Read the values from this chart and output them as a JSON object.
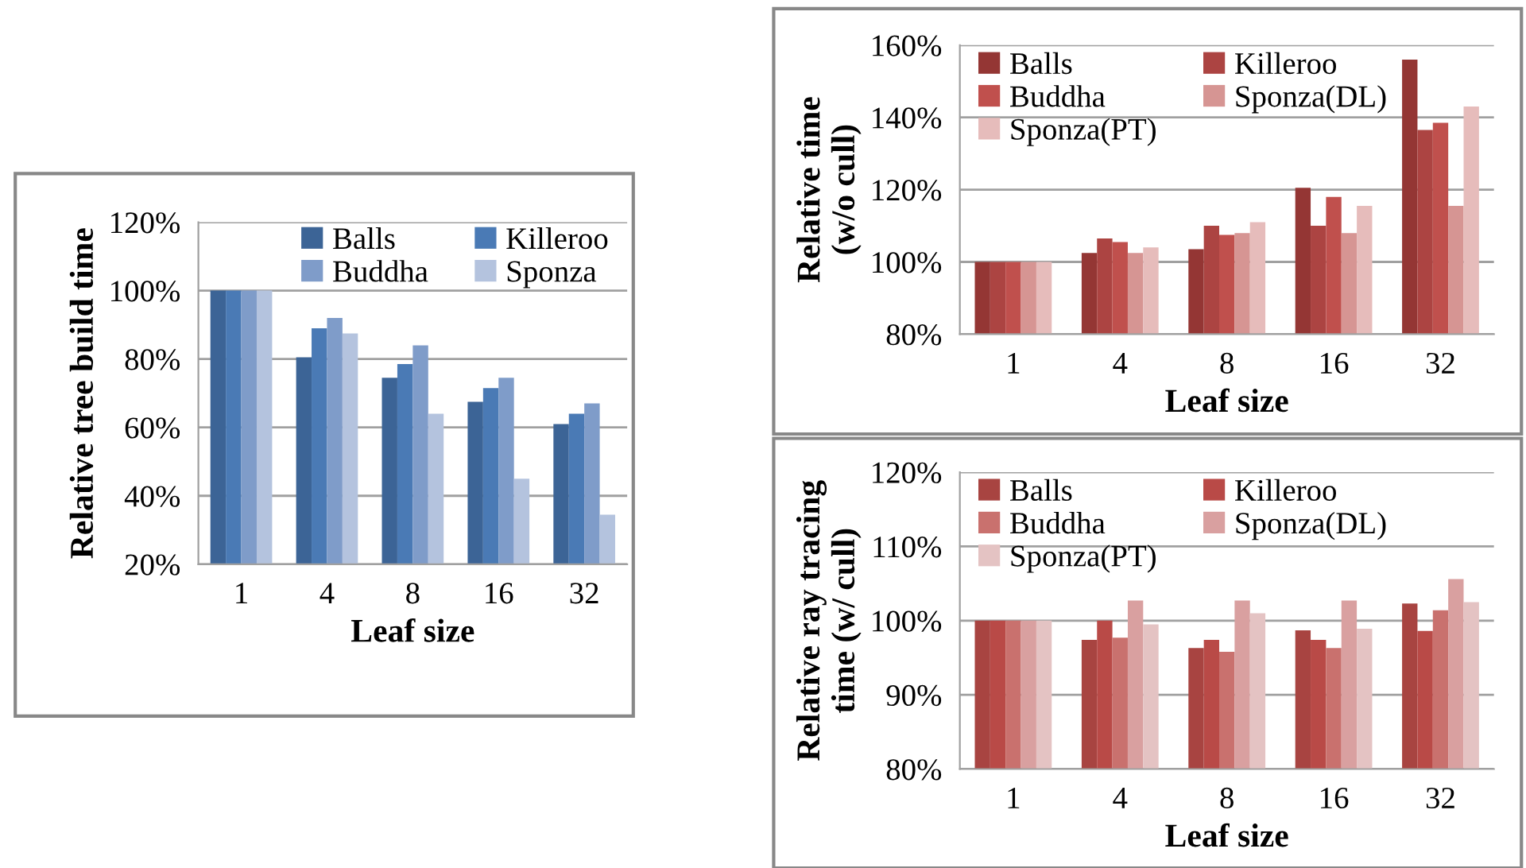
{
  "chart_data": [
    {
      "type": "bar",
      "xlabel": "Leaf size",
      "ylabel": "Relative tree build time",
      "categories": [
        "1",
        "4",
        "8",
        "16",
        "32"
      ],
      "series": [
        {
          "name": "Balls",
          "color": "#3c6496",
          "values": [
            100,
            80.5,
            74.5,
            67.5,
            61
          ]
        },
        {
          "name": "Killeroo",
          "color": "#4a7ab5",
          "values": [
            100,
            89,
            78.5,
            71.5,
            64
          ]
        },
        {
          "name": "Buddha",
          "color": "#7f9cc9",
          "values": [
            100,
            92,
            84,
            74.5,
            67
          ]
        },
        {
          "name": "Sponza",
          "color": "#b4c3de",
          "values": [
            100,
            87.5,
            64,
            45,
            34.5
          ]
        }
      ],
      "ylim": [
        20,
        120
      ],
      "yticks": [
        {
          "value": 20,
          "label": "20%"
        },
        {
          "value": 40,
          "label": "40%"
        },
        {
          "value": 60,
          "label": "60%"
        },
        {
          "value": 80,
          "label": "80%"
        },
        {
          "value": 100,
          "label": "100%"
        },
        {
          "value": 120,
          "label": "120%"
        }
      ],
      "grid": "y",
      "legend": "top right"
    },
    {
      "type": "bar",
      "xlabel": "Leaf size",
      "ylabel": "Relative time\n(w/o cull)",
      "categories": [
        "1",
        "4",
        "8",
        "16",
        "32"
      ],
      "series": [
        {
          "name": "Balls",
          "color": "#943634",
          "values": [
            100,
            102.5,
            103.5,
            120.5,
            156
          ]
        },
        {
          "name": "Killeroo",
          "color": "#ac4442",
          "values": [
            100,
            106.5,
            110,
            110,
            136.5
          ]
        },
        {
          "name": "Buddha",
          "color": "#c0504d",
          "values": [
            100,
            105.5,
            107.5,
            118,
            138.5
          ]
        },
        {
          "name": "Sponza(DL)",
          "color": "#d69593",
          "values": [
            100,
            102.5,
            108,
            108,
            115.5
          ]
        },
        {
          "name": "Sponza(PT)",
          "color": "#e6bcbb",
          "values": [
            100,
            104,
            111,
            115.5,
            143
          ]
        }
      ],
      "ylim": [
        80,
        160
      ],
      "yticks": [
        {
          "value": 80,
          "label": "80%"
        },
        {
          "value": 100,
          "label": "100%"
        },
        {
          "value": 120,
          "label": "120%"
        },
        {
          "value": 140,
          "label": "140%"
        },
        {
          "value": 160,
          "label": "160%"
        }
      ],
      "grid": "y",
      "legend": "top left"
    },
    {
      "type": "bar",
      "xlabel": "Leaf size",
      "ylabel": "Relative ray tracing\ntime (w/ cull)",
      "categories": [
        "1",
        "4",
        "8",
        "16",
        "32"
      ],
      "series": [
        {
          "name": "Balls",
          "color": "#a84441",
          "values": [
            100,
            97.4,
            96.3,
            98.7,
            102.3
          ]
        },
        {
          "name": "Killeroo",
          "color": "#b94a47",
          "values": [
            100,
            100,
            97.4,
            97.4,
            98.6
          ]
        },
        {
          "name": "Buddha",
          "color": "#c9716e",
          "values": [
            100,
            97.7,
            95.8,
            96.3,
            101.4
          ]
        },
        {
          "name": "Sponza(DL)",
          "color": "#d9a0a0",
          "values": [
            100,
            102.7,
            102.7,
            102.7,
            105.6
          ]
        },
        {
          "name": "Sponza(PT)",
          "color": "#e4c3c3",
          "values": [
            100,
            99.5,
            101,
            98.9,
            102.5
          ]
        }
      ],
      "ylim": [
        80,
        120
      ],
      "yticks": [
        {
          "value": 80,
          "label": "80%"
        },
        {
          "value": 90,
          "label": "90%"
        },
        {
          "value": 100,
          "label": "100%"
        },
        {
          "value": 110,
          "label": "110%"
        },
        {
          "value": 120,
          "label": "120%"
        }
      ],
      "grid": "y",
      "legend": "top left"
    }
  ]
}
